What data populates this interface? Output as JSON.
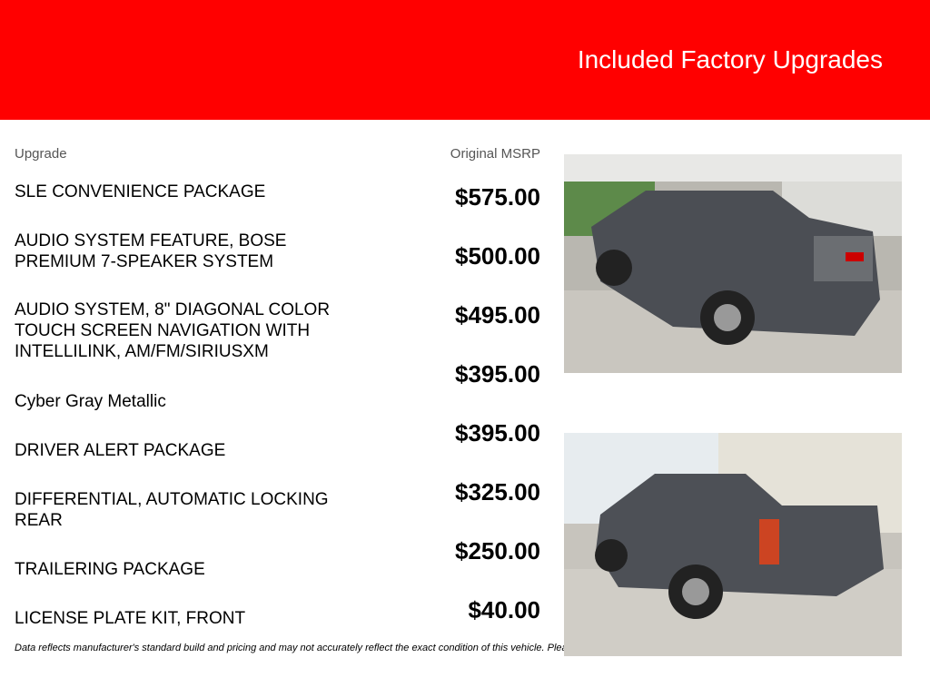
{
  "header": {
    "title": "Included Factory Upgrades"
  },
  "table": {
    "col_upgrade": "Upgrade",
    "col_msrp": "Original MSRP",
    "rows": [
      {
        "name": "SLE CONVENIENCE PACKAGE",
        "price": "$575.00"
      },
      {
        "name": "AUDIO SYSTEM FEATURE, BOSE PREMIUM 7-SPEAKER SYSTEM",
        "price": "$500.00"
      },
      {
        "name": "AUDIO SYSTEM, 8\" DIAGONAL COLOR TOUCH SCREEN NAVIGATION WITH INTELLILINK, AM/FM/SIRIUSXM",
        "price": "$495.00"
      },
      {
        "name": "Cyber Gray Metallic",
        "price": "$395.00"
      },
      {
        "name": "DRIVER ALERT PACKAGE",
        "price": "$395.00"
      },
      {
        "name": "DIFFERENTIAL, AUTOMATIC LOCKING REAR",
        "price": "$325.00"
      },
      {
        "name": "TRAILERING PACKAGE",
        "price": "$250.00"
      },
      {
        "name": "LICENSE PLATE KIT, FRONT",
        "price": "$40.00"
      }
    ]
  },
  "disclaimer": "Data reflects manufacturer's standard build and pricing and may not accurately reflect the exact condition of this vehicle. Please contact dealer for more information.",
  "colors": {
    "banner": "#ff0000"
  }
}
